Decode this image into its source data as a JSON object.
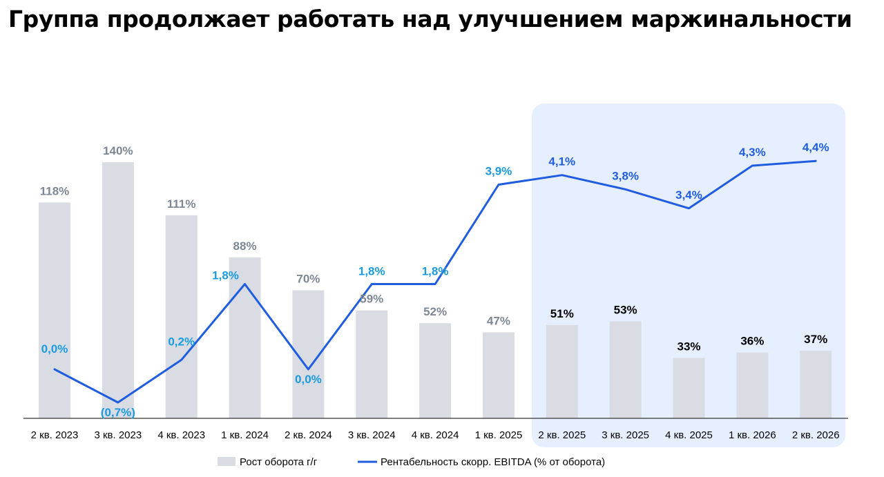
{
  "title": "Группа продолжает работать над улучшением маржинальности",
  "chart_data": {
    "type": "bar+line",
    "categories": [
      "2 кв. 2023",
      "3 кв. 2023",
      "4 кв. 2023",
      "1 кв. 2024",
      "2 кв. 2024",
      "3 кв. 2024",
      "4 кв. 2024",
      "1 кв. 2025",
      "2 кв. 2025",
      "3 кв. 2025",
      "4 кв. 2025",
      "1 кв. 2026",
      "2 кв. 2026"
    ],
    "series": [
      {
        "name": "Рост оборота г/г",
        "type": "bar",
        "values": [
          118,
          140,
          111,
          88,
          70,
          59,
          52,
          47,
          51,
          53,
          33,
          36,
          37
        ],
        "labels": [
          "118%",
          "140%",
          "111%",
          "88%",
          "70%",
          "59%",
          "52%",
          "47%",
          "51%",
          "53%",
          "33%",
          "36%",
          "37%"
        ]
      },
      {
        "name": "Рентабельность скорр. EBITDA (% от оборота)",
        "type": "line",
        "values": [
          0.0,
          -0.7,
          0.2,
          1.8,
          0.0,
          1.8,
          1.8,
          3.9,
          4.1,
          3.8,
          3.4,
          4.3,
          4.4
        ],
        "labels": [
          "0,0%",
          "(0,7%)",
          "0,2%",
          "1,8%",
          "0,0%",
          "1,8%",
          "1,8%",
          "3,9%",
          "4,1%",
          "3,8%",
          "3,4%",
          "4,3%",
          "4,4%"
        ]
      }
    ],
    "highlighted_categories": [
      "2 кв. 2025",
      "3 кв. 2025",
      "4 кв. 2025",
      "1 кв. 2026",
      "2 кв. 2026"
    ],
    "legend_position": "bottom-center",
    "grid": false
  },
  "colors": {
    "bar": "#d9dce2",
    "line": "#1f5ce0",
    "actual_label_bar": "#7d8794",
    "actual_label_line": "#1a9be0",
    "forecast_label_bar": "#000000",
    "forecast_label_line": "#1f5ce0",
    "highlight_bg": "#e6efff",
    "axis": "#333333"
  }
}
